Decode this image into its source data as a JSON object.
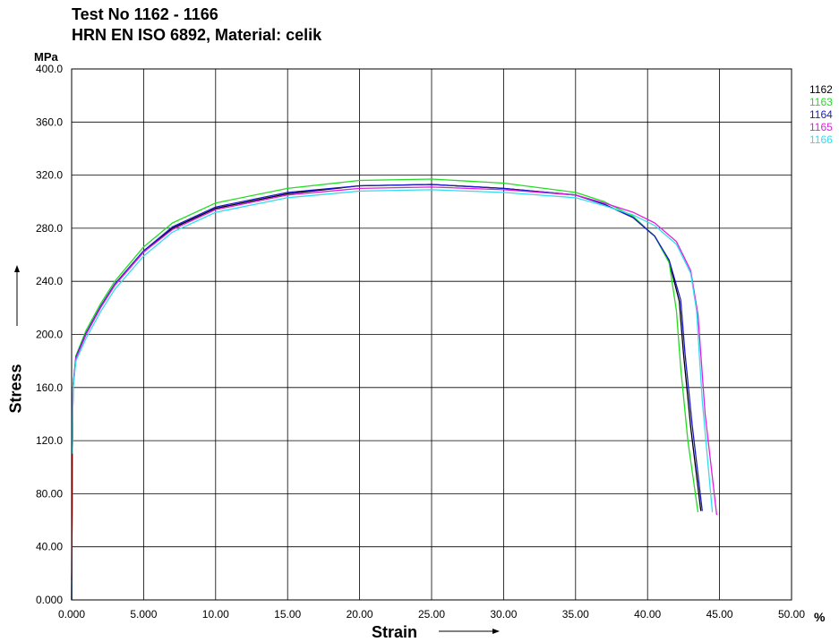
{
  "header": {
    "title_line1": "Test No  1162 - 1166",
    "title_line2": "HRN EN ISO 6892, Material: celik"
  },
  "chart_data": {
    "type": "line",
    "x_unit": "%",
    "y_unit": "MPa",
    "xlabel": "Strain",
    "ylabel": "Stress",
    "xlim": [
      0,
      50
    ],
    "ylim": [
      0,
      400
    ],
    "grid": true,
    "legend_position": "top-right",
    "x_ticks": [
      "0.000",
      "5.000",
      "10.00",
      "15.00",
      "20.00",
      "25.00",
      "30.00",
      "35.00",
      "40.00",
      "45.00",
      "50.00"
    ],
    "y_ticks": [
      "0.000",
      "40.00",
      "80.00",
      "120.0",
      "160.0",
      "200.0",
      "240.0",
      "280.0",
      "320.0",
      "360.0",
      "400.0"
    ],
    "series": [
      {
        "name": "1162",
        "color": "#000000",
        "x": [
          0,
          0.05,
          0.1,
          0.3,
          1,
          2,
          3,
          5,
          7,
          10,
          15,
          20,
          25,
          30,
          35,
          37,
          39,
          40.5,
          41.5,
          42.2,
          42.5,
          43.0,
          43.7
        ],
        "y": [
          0,
          110,
          160,
          182,
          200,
          220,
          237,
          262,
          280,
          295,
          306,
          312,
          313,
          310,
          305,
          298,
          288,
          274,
          255,
          225,
          185,
          130,
          67
        ]
      },
      {
        "name": "1163",
        "color": "#22dd22",
        "x": [
          0,
          0.05,
          0.1,
          0.3,
          1,
          2,
          3,
          5,
          7,
          10,
          15,
          20,
          25,
          30,
          35,
          37,
          39,
          40.5,
          41.5,
          42.0,
          42.3,
          42.8,
          43.5
        ],
        "y": [
          0,
          110,
          162,
          184,
          203,
          223,
          240,
          266,
          284,
          299,
          310,
          316,
          317,
          314,
          307,
          300,
          289,
          274,
          254,
          218,
          175,
          120,
          66
        ]
      },
      {
        "name": "1164",
        "color": "#1a1acc",
        "x": [
          0,
          0.05,
          0.1,
          0.3,
          1,
          2,
          3,
          5,
          7,
          10,
          15,
          20,
          25,
          30,
          35,
          37,
          39,
          40.5,
          41.5,
          42.3,
          42.6,
          43.1,
          43.8
        ],
        "y": [
          0,
          112,
          161,
          183,
          201,
          221,
          238,
          263,
          281,
          296,
          307,
          312,
          313,
          310,
          305,
          298,
          288,
          274,
          256,
          226,
          186,
          132,
          67
        ]
      },
      {
        "name": "1165",
        "color": "#e020e0",
        "x": [
          0,
          0.05,
          0.1,
          0.3,
          1,
          2,
          3,
          5,
          7,
          10,
          15,
          20,
          25,
          30,
          35,
          37,
          39,
          40.5,
          42.0,
          43.0,
          43.5,
          44.0,
          44.8
        ],
        "y": [
          0,
          110,
          160,
          182,
          200,
          220,
          237,
          262,
          279,
          294,
          305,
          310,
          311,
          309,
          305,
          299,
          292,
          284,
          270,
          248,
          215,
          140,
          64
        ]
      },
      {
        "name": "1166",
        "color": "#33ddee",
        "x": [
          0,
          0.05,
          0.1,
          0.3,
          1,
          2,
          3,
          5,
          7,
          10,
          15,
          20,
          25,
          30,
          35,
          37,
          39,
          40.5,
          42.0,
          43.0,
          43.4,
          43.8,
          44.5
        ],
        "y": [
          0,
          112,
          159,
          180,
          197,
          217,
          234,
          259,
          277,
          292,
          303,
          308,
          309,
          307,
          303,
          297,
          290,
          282,
          268,
          246,
          218,
          150,
          66
        ]
      },
      {
        "name": "",
        "color": "#dd0000",
        "x": [
          0,
          0.02,
          0.05
        ],
        "y": [
          15,
          60,
          110
        ]
      }
    ]
  }
}
